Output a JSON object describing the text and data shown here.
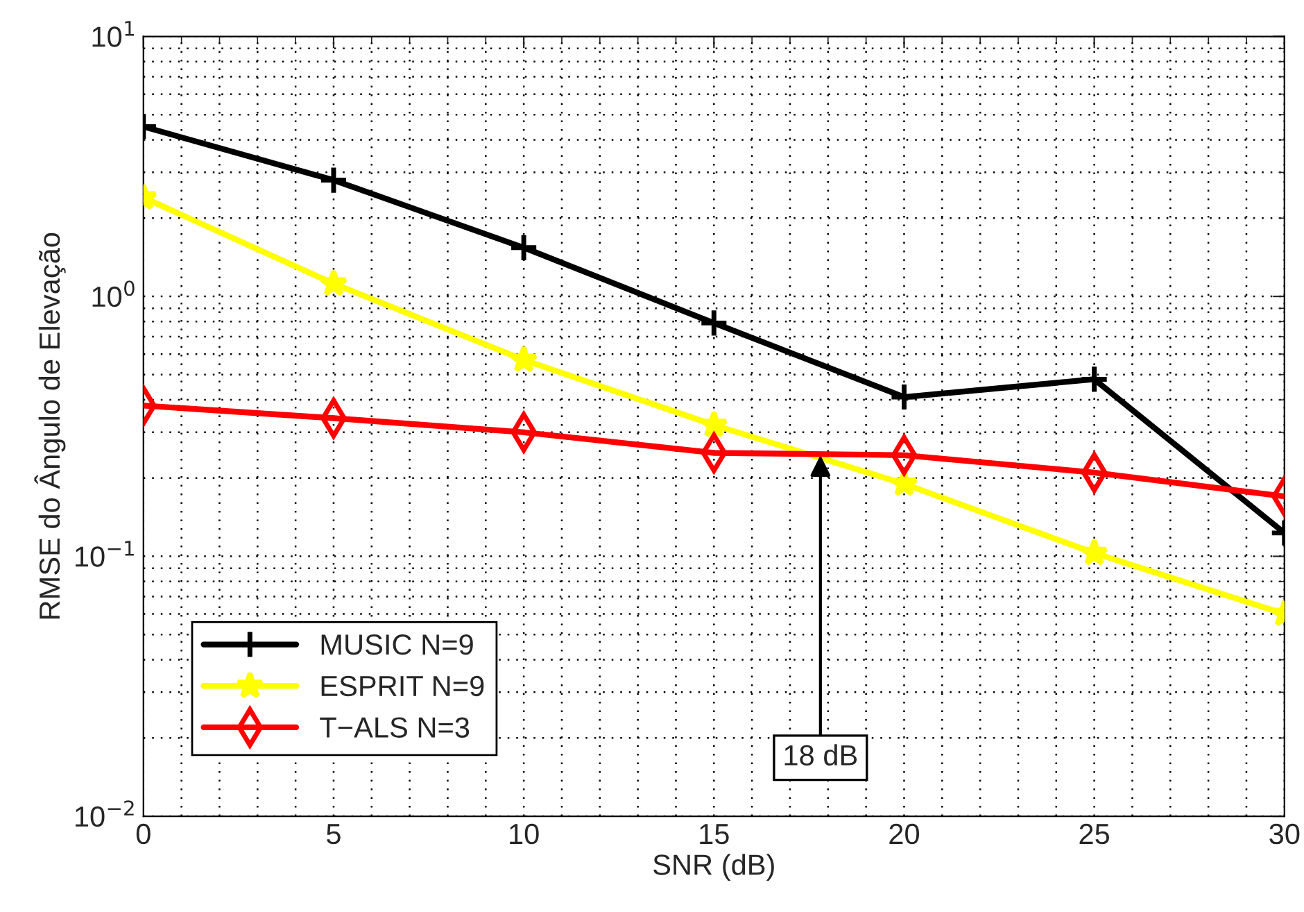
{
  "chart_data": {
    "type": "line",
    "xlabel": "SNR (dB)",
    "ylabel": "RMSE do Ângulo de Elevação",
    "x": [
      0,
      5,
      10,
      15,
      20,
      25,
      30
    ],
    "log": "y",
    "xlim": [
      0,
      30
    ],
    "xticks": [
      0,
      5,
      10,
      15,
      20,
      25,
      30
    ],
    "ylim": [
      0.01,
      10
    ],
    "yticks": [
      {
        "value": 0.01,
        "label": "10$^{−2}$"
      },
      {
        "value": 0.1,
        "label": "10$^{−1}$"
      },
      {
        "value": 1,
        "label": "10$^{0}$"
      },
      {
        "value": 10,
        "label": "10$^{1}$"
      }
    ],
    "grid": true,
    "legend": "bottom left",
    "series": [
      {
        "name": "MUSIC N=9",
        "color": "#000000",
        "marker": "cross",
        "values": [
          4.5,
          2.8,
          1.54,
          0.79,
          0.41,
          0.48,
          0.123
        ]
      },
      {
        "name": "ESPRIT N=9",
        "color": "#ffff00",
        "marker": "star",
        "values": [
          2.4,
          1.12,
          0.57,
          0.32,
          0.19,
          0.103,
          0.06
        ]
      },
      {
        "name": "T−ALS N=3",
        "color": "#ff0000",
        "marker": "diamond",
        "values": [
          0.38,
          0.34,
          0.3,
          0.25,
          0.245,
          0.21,
          0.17
        ]
      }
    ],
    "annotations": [
      {
        "text": "18 dB",
        "x": 17.8,
        "y": 0.245
      }
    ]
  }
}
